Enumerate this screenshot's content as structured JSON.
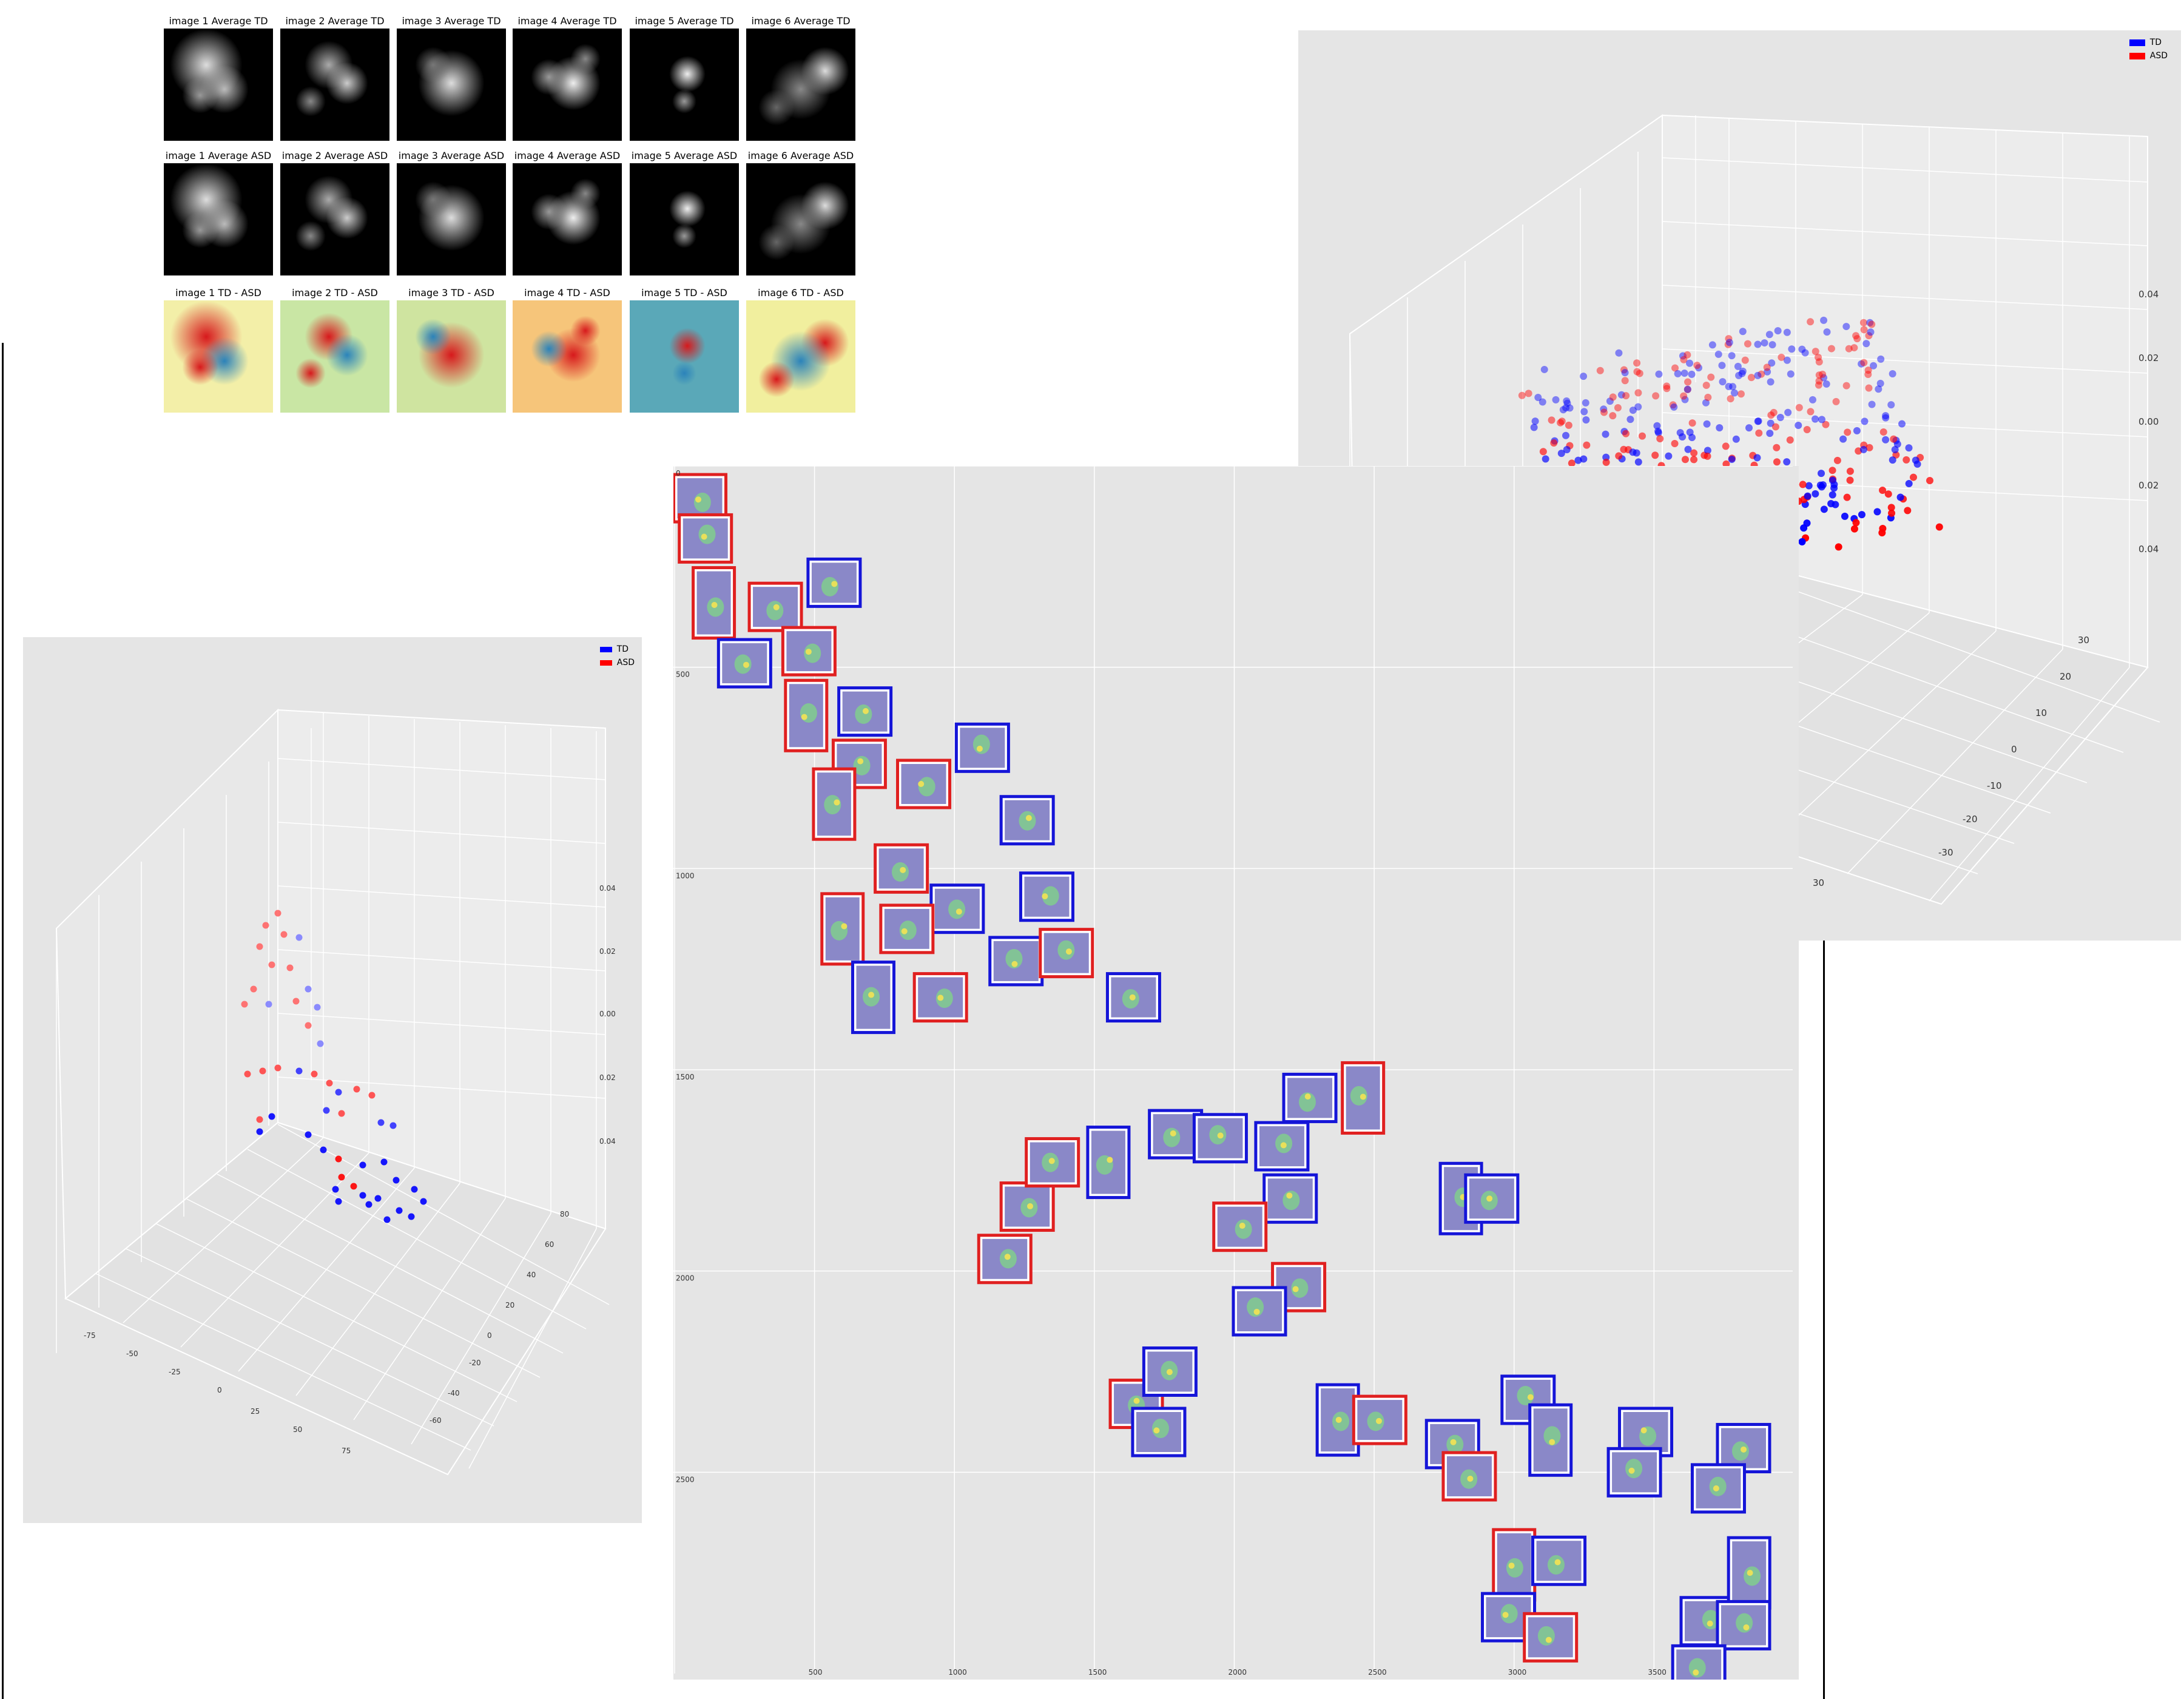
{
  "heatmaps": {
    "rows": [
      {
        "kind": "dark",
        "titles": [
          "image 1 Average TD",
          "image 2 Average TD",
          "image 3 Average TD",
          "image 4 Average TD",
          "image 5 Average TD",
          "image 6 Average TD"
        ]
      },
      {
        "kind": "dark",
        "titles": [
          "image 1 Average ASD",
          "image 2 Average ASD",
          "image 3 Average ASD",
          "image 4 Average ASD",
          "image 5 Average ASD",
          "image 6 Average ASD"
        ]
      },
      {
        "kind": "diff",
        "titles": [
          "image 1 TD - ASD",
          "image 2 TD - ASD",
          "image 3 TD - ASD",
          "image 4 TD - ASD",
          "image 5 TD - ASD",
          "image 6 TD - ASD"
        ]
      }
    ],
    "colors": {
      "low": "#f0f4a8",
      "high": "#d7191c",
      "neg": "#2b83ba"
    }
  },
  "chart_data": [
    {
      "id": "scatter3d_large",
      "type": "scatter",
      "legend": [
        {
          "name": "TD",
          "color": "#0000ff"
        },
        {
          "name": "ASD",
          "color": "#ff0000"
        }
      ],
      "legend_position": "top-right",
      "z_ticks": [
        "0.04",
        "0.02",
        "0.00",
        "0.02",
        "0.04"
      ],
      "x_ticks": [
        "-20",
        "-10",
        "0",
        "10",
        "20",
        "30"
      ],
      "y_ticks": [
        "30",
        "20",
        "10",
        "0",
        "-10",
        "-20",
        "-30"
      ],
      "grid": true
    },
    {
      "id": "scatter3d_small",
      "type": "scatter",
      "legend": [
        {
          "name": "TD",
          "color": "#0000ff"
        },
        {
          "name": "ASD",
          "color": "#ff0000"
        }
      ],
      "legend_position": "top-right",
      "z_ticks": [
        "0.04",
        "0.02",
        "0.00",
        "0.02",
        "0.04"
      ],
      "x_ticks": [
        "-75",
        "-50",
        "-25",
        "0",
        "25",
        "50",
        "75"
      ],
      "y_ticks": [
        "80",
        "60",
        "40",
        "20",
        "0",
        "-20",
        "-40",
        "-60"
      ],
      "grid": true
    },
    {
      "id": "tsne_thumbnails",
      "type": "scatter",
      "x_ticks": [
        "0",
        "500",
        "1000",
        "1500",
        "2000",
        "2500",
        "3000",
        "3500"
      ],
      "y_ticks": [
        "0",
        "500",
        "1000",
        "1500",
        "2000",
        "2500"
      ],
      "xlim": [
        0,
        4000
      ],
      "ylim": [
        0,
        3000
      ],
      "y_inverted": true,
      "grid": true,
      "legend": [
        {
          "name": "TD",
          "color": "#1515d8"
        },
        {
          "name": "ASD",
          "color": "#e02020"
        }
      ],
      "points": [
        {
          "x": 90,
          "y": 80,
          "g": "ASD"
        },
        {
          "x": 110,
          "y": 180,
          "g": "ASD"
        },
        {
          "x": 140,
          "y": 340,
          "g": "ASD"
        },
        {
          "x": 360,
          "y": 350,
          "g": "ASD"
        },
        {
          "x": 570,
          "y": 290,
          "g": "TD"
        },
        {
          "x": 250,
          "y": 490,
          "g": "TD"
        },
        {
          "x": 480,
          "y": 460,
          "g": "ASD"
        },
        {
          "x": 470,
          "y": 620,
          "g": "ASD"
        },
        {
          "x": 680,
          "y": 610,
          "g": "TD"
        },
        {
          "x": 1100,
          "y": 700,
          "g": "TD"
        },
        {
          "x": 660,
          "y": 740,
          "g": "ASD"
        },
        {
          "x": 890,
          "y": 790,
          "g": "ASD"
        },
        {
          "x": 570,
          "y": 840,
          "g": "ASD"
        },
        {
          "x": 1260,
          "y": 880,
          "g": "TD"
        },
        {
          "x": 810,
          "y": 1000,
          "g": "ASD"
        },
        {
          "x": 1010,
          "y": 1100,
          "g": "TD"
        },
        {
          "x": 1330,
          "y": 1070,
          "g": "TD"
        },
        {
          "x": 600,
          "y": 1150,
          "g": "ASD"
        },
        {
          "x": 830,
          "y": 1150,
          "g": "ASD"
        },
        {
          "x": 1220,
          "y": 1230,
          "g": "TD"
        },
        {
          "x": 1400,
          "y": 1210,
          "g": "ASD"
        },
        {
          "x": 1640,
          "y": 1320,
          "g": "TD"
        },
        {
          "x": 710,
          "y": 1320,
          "g": "TD"
        },
        {
          "x": 950,
          "y": 1320,
          "g": "ASD"
        },
        {
          "x": 1180,
          "y": 1970,
          "g": "ASD"
        },
        {
          "x": 1260,
          "y": 1840,
          "g": "ASD"
        },
        {
          "x": 1350,
          "y": 1730,
          "g": "ASD"
        },
        {
          "x": 1550,
          "y": 1730,
          "g": "TD"
        },
        {
          "x": 1790,
          "y": 1660,
          "g": "TD"
        },
        {
          "x": 1950,
          "y": 1670,
          "g": "TD"
        },
        {
          "x": 2170,
          "y": 1690,
          "g": "TD"
        },
        {
          "x": 2270,
          "y": 1570,
          "g": "TD"
        },
        {
          "x": 2460,
          "y": 1570,
          "g": "ASD"
        },
        {
          "x": 2200,
          "y": 1820,
          "g": "TD"
        },
        {
          "x": 2020,
          "y": 1890,
          "g": "ASD"
        },
        {
          "x": 2230,
          "y": 2040,
          "g": "ASD"
        },
        {
          "x": 2090,
          "y": 2100,
          "g": "TD"
        },
        {
          "x": 2810,
          "y": 1820,
          "g": "TD"
        },
        {
          "x": 2920,
          "y": 1820,
          "g": "TD"
        },
        {
          "x": 1650,
          "y": 2330,
          "g": "ASD"
        },
        {
          "x": 1770,
          "y": 2250,
          "g": "TD"
        },
        {
          "x": 1730,
          "y": 2400,
          "g": "TD"
        },
        {
          "x": 2370,
          "y": 2370,
          "g": "TD"
        },
        {
          "x": 2520,
          "y": 2370,
          "g": "ASD"
        },
        {
          "x": 2780,
          "y": 2430,
          "g": "TD"
        },
        {
          "x": 2840,
          "y": 2510,
          "g": "ASD"
        },
        {
          "x": 3050,
          "y": 2320,
          "g": "TD"
        },
        {
          "x": 3130,
          "y": 2420,
          "g": "TD"
        },
        {
          "x": 3470,
          "y": 2400,
          "g": "TD"
        },
        {
          "x": 3430,
          "y": 2500,
          "g": "TD"
        },
        {
          "x": 3820,
          "y": 2440,
          "g": "TD"
        },
        {
          "x": 3730,
          "y": 2540,
          "g": "TD"
        },
        {
          "x": 3000,
          "y": 2730,
          "g": "ASD"
        },
        {
          "x": 3160,
          "y": 2720,
          "g": "TD"
        },
        {
          "x": 2980,
          "y": 2860,
          "g": "TD"
        },
        {
          "x": 3130,
          "y": 2910,
          "g": "ASD"
        },
        {
          "x": 3690,
          "y": 2870,
          "g": "TD"
        },
        {
          "x": 3840,
          "y": 2750,
          "g": "TD"
        },
        {
          "x": 3820,
          "y": 2880,
          "g": "TD"
        },
        {
          "x": 3660,
          "y": 2990,
          "g": "TD"
        }
      ]
    }
  ]
}
